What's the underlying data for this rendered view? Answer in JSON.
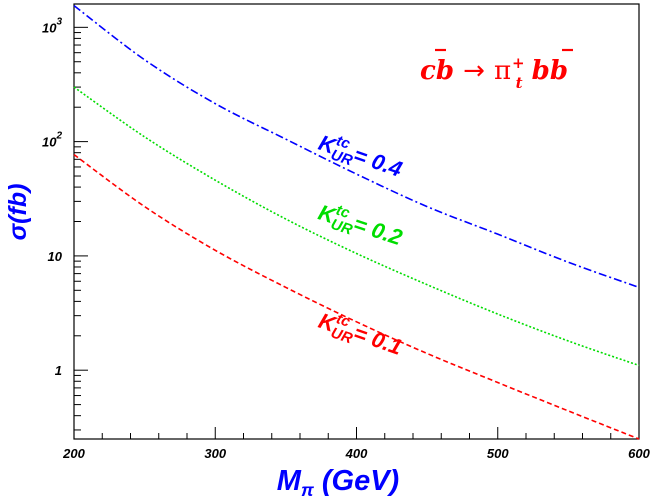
{
  "chart_data": {
    "type": "line",
    "xlabel": "M",
    "xlabel_sub": "π",
    "xlabel_unit": "(GeV)",
    "ylabel": "σ(fb)",
    "xlim": [
      200,
      600
    ],
    "ylim": [
      0.25,
      1600
    ],
    "y_scale": "log",
    "grid": false,
    "x_ticks": [
      "200",
      "300",
      "400",
      "500",
      "600"
    ],
    "y_tick_labels": [
      {
        "value": 1,
        "base": "1",
        "exp": ""
      },
      {
        "value": 10,
        "base": "10",
        "exp": ""
      },
      {
        "value": 100,
        "base": "10",
        "exp": "2"
      },
      {
        "value": 1000,
        "base": "10",
        "exp": "3"
      }
    ],
    "annotation": {
      "c": "c",
      "bbar": "b",
      "arrow": "→",
      "pi": "π",
      "pi_sub": "t",
      "pi_sup": "+",
      "b": "b",
      "bbar2": "b",
      "color": "#ff0000"
    },
    "series": [
      {
        "label_main": "K",
        "label_sup": "tc",
        "label_sub": "UR",
        "label_eq": "= 0.4",
        "color": "#0000ff",
        "dash": "8,3,2,3",
        "x": [
          200,
          250,
          300,
          350,
          400,
          450,
          500,
          550,
          600
        ],
        "values": [
          1550,
          520,
          215,
          105,
          52,
          27,
          15.5,
          8.8,
          5.3
        ]
      },
      {
        "label_main": "K",
        "label_sup": "tc",
        "label_sub": "UR",
        "label_eq": "= 0.2",
        "color": "#00dd00",
        "dash": "2,2",
        "x": [
          200,
          250,
          300,
          350,
          400,
          450,
          500,
          550,
          600
        ],
        "values": [
          300,
          110,
          46,
          21,
          10.5,
          5.6,
          3.1,
          1.8,
          1.1
        ]
      },
      {
        "label_main": "K",
        "label_sup": "tc",
        "label_sub": "UR",
        "label_eq": "= 0.1",
        "color": "#ff0000",
        "dash": "5,3",
        "x": [
          200,
          250,
          300,
          350,
          400,
          450,
          500,
          550,
          600
        ],
        "values": [
          77,
          27,
          11.2,
          5.3,
          2.65,
          1.4,
          0.78,
          0.44,
          0.25
        ]
      }
    ]
  }
}
